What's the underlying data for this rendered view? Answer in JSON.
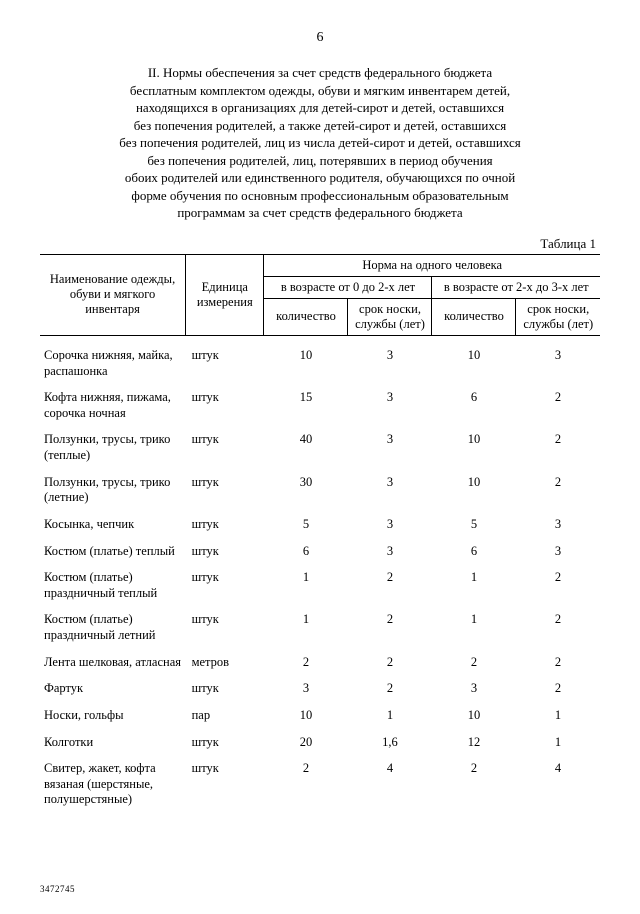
{
  "pageNumber": "6",
  "titleLines": [
    "II. Нормы обеспечения за счет средств федерального бюджета",
    "бесплатным комплектом одежды, обуви и мягким инвентарем детей,",
    "находящихся в организациях для детей-сирот и детей, оставшихся",
    "без попечения родителей, а также детей-сирот и детей, оставшихся",
    "без попечения родителей, лиц из числа детей-сирот и детей, оставшихся",
    "без попечения родителей, лиц, потерявших в период обучения",
    "обоих родителей или единственного родителя, обучающихся по очной",
    "форме обучения по основным профессиональным образовательным",
    "программам за счет средств федерального бюджета"
  ],
  "tableCaption": "Таблица 1",
  "header": {
    "col1": "Наименование одежды, обуви и мягкого инвентаря",
    "col2": "Единица измерения",
    "super": "Норма на одного человека",
    "groupA": "в возрасте от 0 до 2-х лет",
    "groupB": "в возрасте от 2-х до 3-х лет",
    "qty": "количество",
    "wear": "срок носки, службы (лет)"
  },
  "rows": [
    {
      "name": "Сорочка нижняя, майка, распашонка",
      "unit": "штук",
      "a_qty": "10",
      "a_wear": "3",
      "b_qty": "10",
      "b_wear": "3"
    },
    {
      "name": "Кофта нижняя, пижама, сорочка ночная",
      "unit": "штук",
      "a_qty": "15",
      "a_wear": "3",
      "b_qty": "6",
      "b_wear": "2"
    },
    {
      "name": "Ползунки, трусы, трико (теплые)",
      "unit": "штук",
      "a_qty": "40",
      "a_wear": "3",
      "b_qty": "10",
      "b_wear": "2"
    },
    {
      "name": "Ползунки, трусы, трико (летние)",
      "unit": "штук",
      "a_qty": "30",
      "a_wear": "3",
      "b_qty": "10",
      "b_wear": "2"
    },
    {
      "name": "Косынка, чепчик",
      "unit": "штук",
      "a_qty": "5",
      "a_wear": "3",
      "b_qty": "5",
      "b_wear": "3"
    },
    {
      "name": "Костюм (платье) теплый",
      "unit": "штук",
      "a_qty": "6",
      "a_wear": "3",
      "b_qty": "6",
      "b_wear": "3"
    },
    {
      "name": "Костюм (платье) праздничный теплый",
      "unit": "штук",
      "a_qty": "1",
      "a_wear": "2",
      "b_qty": "1",
      "b_wear": "2"
    },
    {
      "name": "Костюм (платье) праздничный летний",
      "unit": "штук",
      "a_qty": "1",
      "a_wear": "2",
      "b_qty": "1",
      "b_wear": "2"
    },
    {
      "name": "Лента шелковая, атласная",
      "unit": "метров",
      "a_qty": "2",
      "a_wear": "2",
      "b_qty": "2",
      "b_wear": "2"
    },
    {
      "name": "Фартук",
      "unit": "штук",
      "a_qty": "3",
      "a_wear": "2",
      "b_qty": "3",
      "b_wear": "2"
    },
    {
      "name": "Носки, гольфы",
      "unit": "пар",
      "a_qty": "10",
      "a_wear": "1",
      "b_qty": "10",
      "b_wear": "1"
    },
    {
      "name": "Колготки",
      "unit": "штук",
      "a_qty": "20",
      "a_wear": "1,6",
      "b_qty": "12",
      "b_wear": "1"
    },
    {
      "name": "Свитер, жакет, кофта вязаная (шерстяные, полушерстяные)",
      "unit": "штук",
      "a_qty": "2",
      "a_wear": "4",
      "b_qty": "2",
      "b_wear": "4"
    }
  ],
  "footerCode": "3472745"
}
